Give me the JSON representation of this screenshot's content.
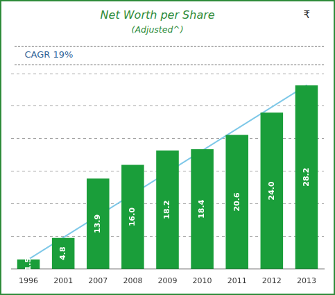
{
  "chart_data": {
    "type": "bar",
    "title": "Net Worth per Share",
    "subtitle": "(Adjusted^)",
    "annotations": [
      "₹",
      "CAGR 19%"
    ],
    "categories": [
      "1996",
      "2001",
      "2007",
      "2008",
      "2009",
      "2010",
      "2011",
      "2012",
      "2013"
    ],
    "series": [
      {
        "type": "bar",
        "color": "#1a9e3a",
        "values": [
          1.5,
          4.8,
          13.9,
          16.0,
          18.2,
          18.4,
          20.6,
          24.0,
          28.2
        ],
        "value_labels": [
          "1.5",
          "4.8",
          "13.9",
          "16.0",
          "18.2",
          "18.4",
          "20.6",
          "24.0",
          "28.2"
        ]
      },
      {
        "type": "line",
        "color": "#7ec8e8",
        "values": [
          1.5,
          null,
          null,
          null,
          null,
          null,
          null,
          null,
          28.2
        ]
      }
    ],
    "ylim": [
      0,
      30
    ],
    "yticks": [
      0,
      5,
      10,
      15,
      20,
      25,
      30
    ],
    "grid": true,
    "tick_labels": "x",
    "data_labels": true
  }
}
